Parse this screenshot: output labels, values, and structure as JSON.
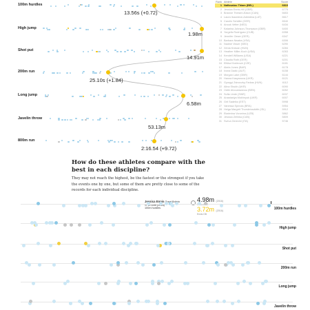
{
  "colors": {
    "highlight": "#f4c400",
    "dot": "#9fd0ea",
    "row_highlight": "#f7e56a"
  },
  "events": [
    {
      "label": "100m hurdles",
      "perf": "13.56s (+0.72)"
    },
    {
      "label": "High jump",
      "perf": "1.98m"
    },
    {
      "label": "Shot put",
      "perf": "14.91m"
    },
    {
      "label": "200m run",
      "perf": "25.10s (+1.84)"
    },
    {
      "label": "Long jump",
      "perf": "6.58m"
    },
    {
      "label": "Javelin throw",
      "perf": "53.13m"
    },
    {
      "label": "800m run",
      "perf": "2:16.54 (+9.72)"
    }
  ],
  "leaderboard": {
    "headers": {
      "rank": "Rank",
      "athlete": "Athlete",
      "score": "Score"
    },
    "highlight": {
      "rank": "1",
      "name": "Nafissatou Thiam (BEL)",
      "score": "6810"
    },
    "rows": [
      {
        "rank": "2",
        "name": "Jessica Ennis-Hill (GBR)",
        "score": "6775"
      },
      {
        "rank": "3",
        "name": "Brianne Theisen-Eaton (CAN)",
        "score": "6653"
      },
      {
        "rank": "4",
        "name": "Laura Ikauniece-Admidina (LAT)",
        "score": "6617"
      },
      {
        "rank": "5",
        "name": "Carolin Schäfer (GER)",
        "score": "6540"
      },
      {
        "rank": "6",
        "name": "Anouk Vetter (NED)",
        "score": "6434"
      },
      {
        "rank": "7",
        "name": "Katarina Johnson-Thompson (GBR)",
        "score": "6400"
      },
      {
        "rank": "8",
        "name": "Yorgelis Rodríguez (CUB)",
        "score": "6358"
      },
      {
        "rank": "9",
        "name": "Jennifer Oeser (GER)",
        "score": "6347"
      },
      {
        "rank": "10",
        "name": "Barbara Nwaba (USA)",
        "score": "6306"
      },
      {
        "rank": "11",
        "name": "Nadine Visser (NED)",
        "score": "6290"
      },
      {
        "rank": "12",
        "name": "Xénia Krizsán (HUN)",
        "score": "6284"
      },
      {
        "rank": "13",
        "name": "Heather Miller-Koch (USA)",
        "score": "6263"
      },
      {
        "rank": "14",
        "name": "Kendell Williams (USA)",
        "score": "6221"
      },
      {
        "rank": "15",
        "name": "Claudia Rath (GER)",
        "score": "6201"
      },
      {
        "rank": "16",
        "name": "Eliška Klučinová (CZE)",
        "score": "6181"
      },
      {
        "rank": "17",
        "name": "Akela Jones (BAR)",
        "score": "6178"
      },
      {
        "rank": "18",
        "name": "Ivona Dadic (AUT)",
        "score": "6158"
      },
      {
        "rank": "19",
        "name": "Morgan Lake (GBR)",
        "score": "6144"
      },
      {
        "rank": "20",
        "name": "Hanna Kasyanova (UKR)",
        "score": "6121"
      },
      {
        "rank": "21",
        "name": "Gyorgyi Zsivoczky-Farkas (HUN)",
        "score": "6112"
      },
      {
        "rank": "22",
        "name": "Alina Shukh (UKR)",
        "score": "6090"
      },
      {
        "rank": "23",
        "name": "Odile Ahouanwanou (BEN)",
        "score": "6052"
      },
      {
        "rank": "24",
        "name": "Sofia Linde (SWE)",
        "score": "6037"
      },
      {
        "rank": "25",
        "name": "Anastasiya Mokhnyuk (UKR)",
        "score": "6007"
      },
      {
        "rank": "26",
        "name": "Grit Sadeiko (EST)",
        "score": "5998"
      },
      {
        "rank": "27",
        "name": "Vanessa Spínola (BRA)",
        "score": "5954"
      },
      {
        "rank": "28",
        "name": "Helga Margrét Thorsteinsdóttir (ISL)",
        "score": "5912"
      },
      {
        "rank": "29",
        "name": "Ekaterina Voronina (UZB)",
        "score": "5862"
      },
      {
        "rank": "30",
        "name": "Jessica Zelinka (CAN)",
        "score": "5809"
      },
      {
        "rank": "31",
        "name": "Sveva Gerevini (ITA)",
        "score": "5746"
      }
    ]
  },
  "section": {
    "title": "How do these athletes compare with the best in each discipline?",
    "description": "They may not reach the highest, be the fastest or the strongest if you take the events one by one, but some of them are pretty close to some of the records for each individual discipline."
  },
  "lower": {
    "tooltip": {
      "name": "Jessica Ennis",
      "country": "Great Britain",
      "value": "12.54m (2016)",
      "event": "100m hurdles"
    },
    "record_value": "4.98m",
    "record_year": "(2016)",
    "record_sub": "Record HR",
    "athlete_value": "3.72m",
    "athlete_year": "(2016)",
    "athlete_sub": "Ennis GB",
    "rows": [
      "100m hurdles",
      "High jump",
      "Shot put",
      "200m run",
      "Long jump",
      "Javelin throw"
    ]
  }
}
